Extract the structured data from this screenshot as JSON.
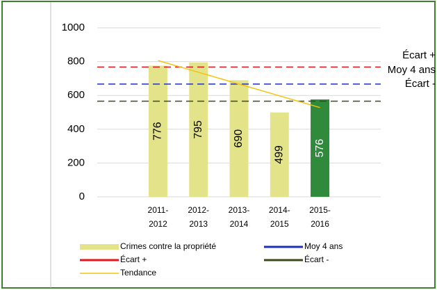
{
  "chart_data": {
    "type": "bar",
    "categories": [
      "2011-2012",
      "2012-2013",
      "2013-2014",
      "2014-2015",
      "2015-2016"
    ],
    "series": [
      {
        "name": "Crimes contre la propriété",
        "values": [
          776,
          795,
          690,
          499,
          576
        ],
        "colors": [
          "#e3e48a",
          "#e3e48a",
          "#e3e48a",
          "#e3e48a",
          "#2f8a3b"
        ],
        "label_colors": [
          "#000000",
          "#000000",
          "#000000",
          "#000000",
          "#ffffff"
        ]
      }
    ],
    "reference_lines": [
      {
        "name": "Écart +",
        "value": 768,
        "color": "#e8161b"
      },
      {
        "name": "Moy 4 ans",
        "value": 667,
        "color": "#1f2fb8"
      },
      {
        "name": "Écart -",
        "value": 566,
        "color": "#3a4a1c"
      }
    ],
    "trend": {
      "name": "Tendance",
      "color": "#f4c20d",
      "values": [
        806.4,
        736.8,
        667.2,
        597.6,
        528
      ]
    },
    "legend_order": [
      "series.0",
      "reference_lines.1",
      "reference_lines.0",
      "reference_lines.2",
      "trend"
    ],
    "ylim": [
      0,
      1000
    ],
    "yticks": [
      0,
      200,
      400,
      600,
      800,
      1000
    ],
    "grid": true
  }
}
